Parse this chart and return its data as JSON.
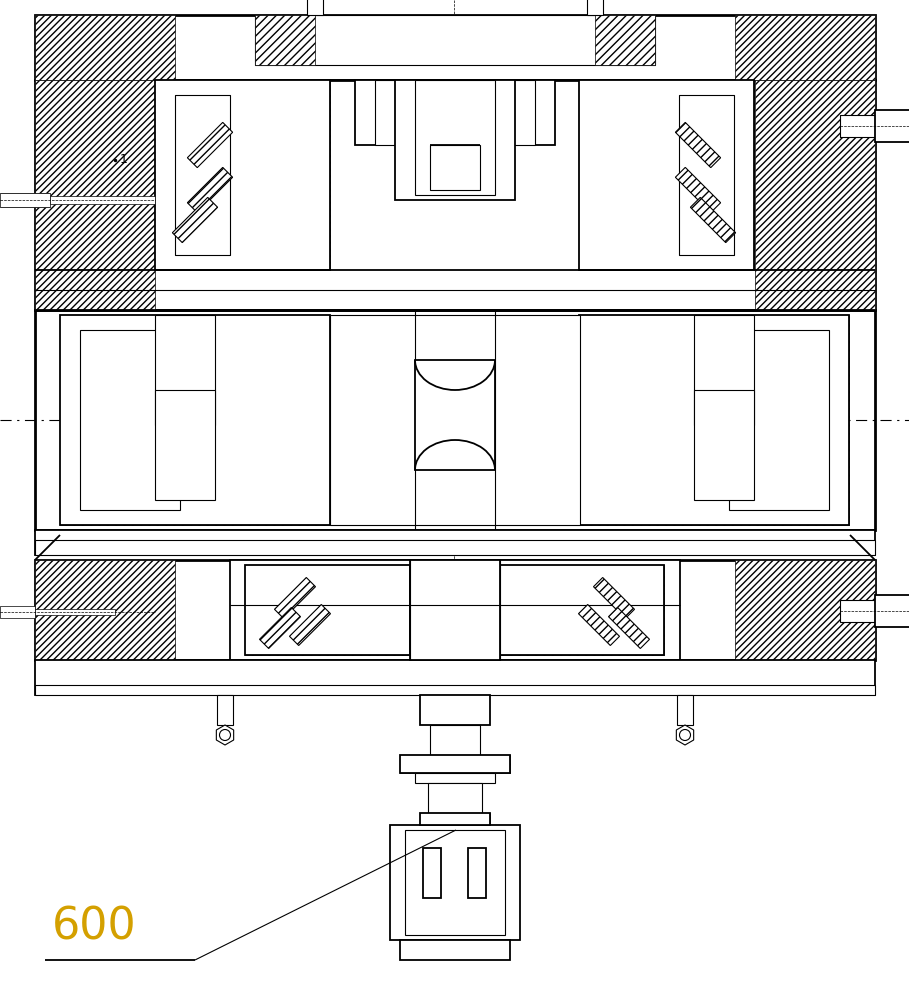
{
  "bg_color": "#ffffff",
  "line_color": "#000000",
  "label_text": "600",
  "label_color": "#d4a000",
  "label_fontsize": 32,
  "fig_width": 9.09,
  "fig_height": 10.0,
  "dpi": 100
}
